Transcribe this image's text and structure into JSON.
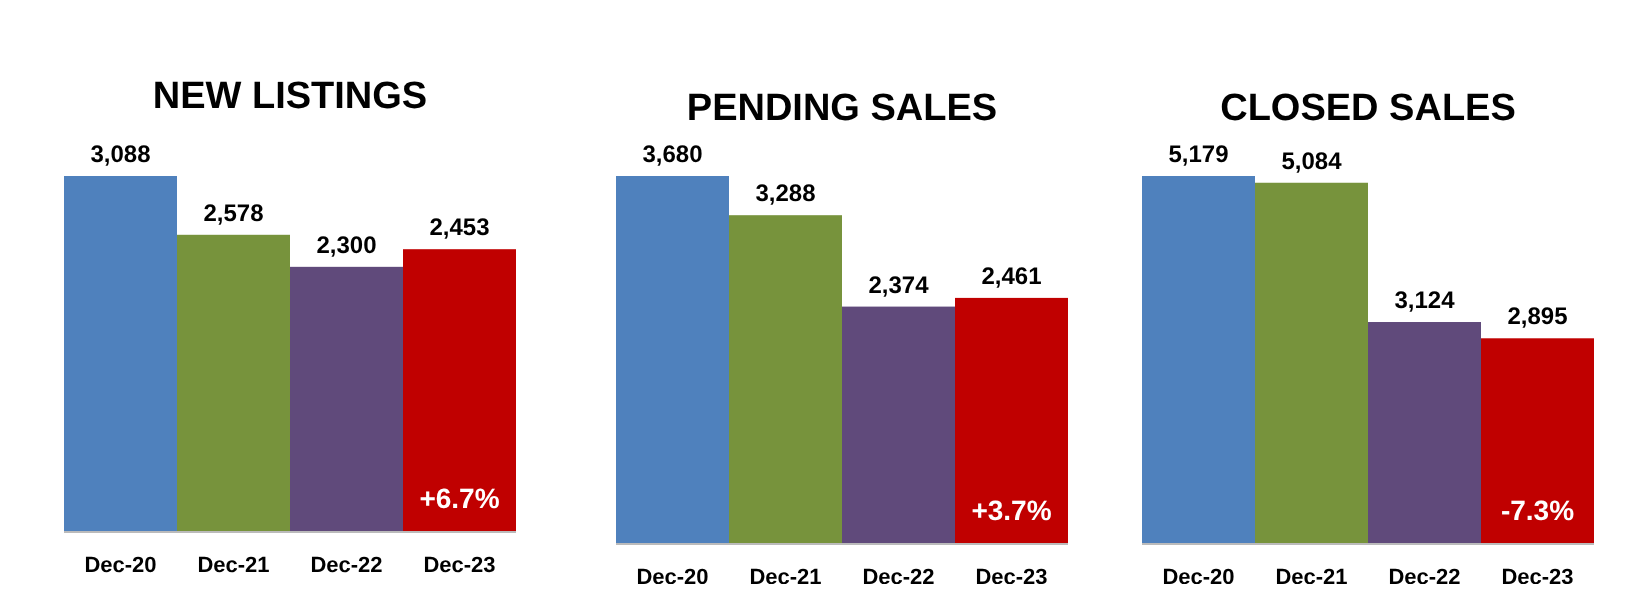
{
  "chart_data": [
    {
      "type": "bar",
      "title": "NEW LISTINGS",
      "categories": [
        "Dec-20",
        "Dec-21",
        "Dec-22",
        "Dec-23"
      ],
      "values": [
        3088,
        2578,
        2300,
        2453
      ],
      "value_labels": [
        "3,088",
        "2,578",
        "2,300",
        "2,453"
      ],
      "colors": [
        "#4f81bd",
        "#77933c",
        "#604a7b",
        "#c00000"
      ],
      "tick_labels": "x",
      "annotations": [
        "+6.7%"
      ]
    },
    {
      "type": "bar",
      "title": "PENDING SALES",
      "categories": [
        "Dec-20",
        "Dec-21",
        "Dec-22",
        "Dec-23"
      ],
      "values": [
        3680,
        3288,
        2374,
        2461
      ],
      "value_labels": [
        "3,680",
        "3,288",
        "2,374",
        "2,461"
      ],
      "colors": [
        "#4f81bd",
        "#77933c",
        "#604a7b",
        "#c00000"
      ],
      "tick_labels": "x",
      "annotations": [
        "+3.7%"
      ]
    },
    {
      "type": "bar",
      "title": "CLOSED SALES",
      "categories": [
        "Dec-20",
        "Dec-21",
        "Dec-22",
        "Dec-23"
      ],
      "values": [
        5179,
        5084,
        3124,
        2895
      ],
      "value_labels": [
        "5,179",
        "5,084",
        "3,124",
        "2,895"
      ],
      "colors": [
        "#4f81bd",
        "#77933c",
        "#604a7b",
        "#c00000"
      ],
      "tick_labels": "x",
      "annotations": [
        "-7.3%"
      ]
    }
  ]
}
